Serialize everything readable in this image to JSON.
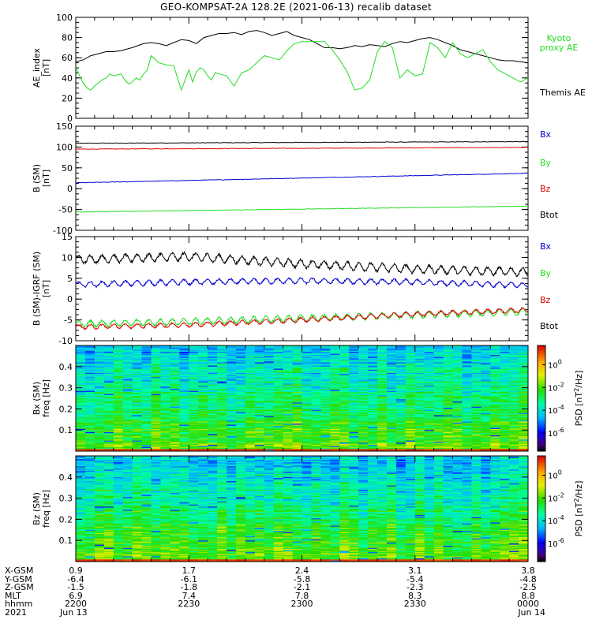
{
  "title": "GEO-KOMPSAT-2A 128.2E (2021-06-13) recalib dataset",
  "colors": {
    "black": "#000000",
    "green": "#22dd22",
    "red": "#dd0000",
    "blue": "#0000cc"
  },
  "chart_data": [
    {
      "type": "line",
      "id": "ae",
      "ylabel": "AE index [nT]",
      "ylabel_lines": [
        "AE_index",
        "[nT]"
      ],
      "ylim": [
        0,
        100
      ],
      "yticks": [
        0,
        20,
        40,
        60,
        80,
        100
      ],
      "xlim": [
        0,
        120
      ],
      "legend": [
        {
          "text": "Kyoto proxy AE",
          "lines": [
            "Kyoto",
            "proxy AE"
          ],
          "color": "#22dd22"
        },
        {
          "text": "Themis AE",
          "lines": [
            "Themis AE"
          ],
          "color": "#000000"
        }
      ],
      "series": [
        {
          "name": "Themis AE",
          "color": "#000000",
          "x": [
            0,
            2,
            4,
            6,
            8,
            10,
            12,
            15,
            18,
            20,
            22,
            24,
            26,
            28,
            30,
            32,
            34,
            36,
            38,
            40,
            42,
            44,
            46,
            48,
            50,
            52,
            54,
            56,
            58,
            60,
            62,
            64,
            66,
            68,
            70,
            72,
            74,
            76,
            78,
            80,
            82,
            84,
            86,
            88,
            90,
            92,
            94,
            96,
            98,
            100,
            102,
            104,
            106,
            108,
            110,
            112,
            114,
            116,
            118,
            120
          ],
          "y": [
            56,
            58,
            62,
            64,
            66,
            66,
            67,
            70,
            74,
            75,
            74,
            72,
            75,
            78,
            77,
            74,
            80,
            82,
            84,
            84,
            85,
            83,
            86,
            87,
            85,
            82,
            84,
            86,
            82,
            80,
            78,
            74,
            70,
            70,
            69,
            70,
            72,
            71,
            73,
            72,
            71,
            74,
            76,
            75,
            77,
            79,
            80,
            78,
            75,
            72,
            68,
            66,
            64,
            62,
            60,
            58,
            57,
            57,
            56,
            55
          ]
        },
        {
          "name": "Kyoto proxy AE",
          "color": "#22dd22",
          "x": [
            0,
            1,
            2,
            3,
            4,
            5,
            6,
            7,
            8,
            9,
            10,
            12,
            13,
            14,
            15,
            16,
            17,
            18,
            19,
            20,
            22,
            24,
            26,
            27,
            28,
            29,
            30,
            31,
            32,
            33,
            34,
            35,
            36,
            37,
            38,
            40,
            42,
            44,
            46,
            48,
            50,
            52,
            54,
            55,
            56,
            58,
            60,
            62,
            64,
            66,
            68,
            70,
            72,
            74,
            76,
            78,
            80,
            82,
            84,
            86,
            88,
            90,
            92,
            94,
            96,
            98,
            100,
            102,
            104,
            106,
            108,
            110,
            112,
            114,
            116,
            118,
            120
          ],
          "y": [
            52,
            42,
            35,
            30,
            28,
            32,
            35,
            38,
            40,
            44,
            42,
            44,
            38,
            34,
            36,
            40,
            38,
            44,
            48,
            62,
            55,
            53,
            52,
            40,
            28,
            38,
            48,
            36,
            46,
            50,
            48,
            42,
            38,
            45,
            44,
            42,
            32,
            45,
            48,
            55,
            62,
            60,
            58,
            62,
            67,
            74,
            76,
            76,
            76,
            76,
            68,
            58,
            46,
            28,
            30,
            38,
            66,
            76,
            70,
            40,
            48,
            42,
            44,
            75,
            70,
            60,
            75,
            64,
            60,
            64,
            68,
            56,
            48,
            44,
            40,
            36,
            40
          ]
        }
      ]
    },
    {
      "type": "line",
      "id": "b_sm",
      "ylabel": "B (SM) [nT]",
      "ylabel_lines": [
        "B (SM)",
        "[nT]"
      ],
      "ylim": [
        -100,
        150
      ],
      "yticks": [
        -100,
        -50,
        0,
        50,
        100,
        150
      ],
      "xlim": [
        0,
        120
      ],
      "legend": [
        {
          "text": "Bx",
          "color": "#0000cc"
        },
        {
          "text": "By",
          "color": "#22dd22"
        },
        {
          "text": "Bz",
          "color": "#dd0000"
        },
        {
          "text": "Btot",
          "color": "#000000"
        }
      ],
      "series": [
        {
          "name": "Btot",
          "color": "#000000",
          "x": [
            0,
            120
          ],
          "y": [
            109,
            113
          ]
        },
        {
          "name": "Bz",
          "color": "#dd0000",
          "x": [
            0,
            120
          ],
          "y": [
            95,
            99
          ]
        },
        {
          "name": "Bx",
          "color": "#0000cc",
          "x": [
            0,
            120
          ],
          "y": [
            14,
            37
          ]
        },
        {
          "name": "By",
          "color": "#22dd22",
          "x": [
            0,
            120
          ],
          "y": [
            -56,
            -42
          ]
        }
      ]
    },
    {
      "type": "line",
      "id": "b_minus_igrf",
      "ylabel": "B (SM)-IGRF (SM) [nT]",
      "ylabel_lines": [
        "B (SM)-IGRF (SM)",
        "[nT]"
      ],
      "ylim": [
        -10,
        15
      ],
      "yticks": [
        -10,
        -5,
        0,
        5,
        10,
        15
      ],
      "xlim": [
        0,
        120
      ],
      "legend": [
        {
          "text": "Bx",
          "color": "#0000cc"
        },
        {
          "text": "By",
          "color": "#22dd22"
        },
        {
          "text": "Bz",
          "color": "#dd0000"
        },
        {
          "text": "Btot",
          "color": "#000000"
        }
      ],
      "series": [
        {
          "name": "Btot",
          "color": "#000000",
          "x": [
            0,
            30,
            60,
            90,
            120
          ],
          "y": [
            9.5,
            10.2,
            8.5,
            7.2,
            6.5
          ],
          "oscillation_amplitude": 0.9
        },
        {
          "name": "Bx",
          "color": "#0000cc",
          "x": [
            0,
            30,
            60,
            90,
            120
          ],
          "y": [
            3.5,
            4.1,
            4.4,
            4.1,
            3.3
          ],
          "oscillation_amplitude": 0.6
        },
        {
          "name": "By",
          "color": "#22dd22",
          "x": [
            0,
            30,
            60,
            90,
            120
          ],
          "y": [
            -6.0,
            -5.4,
            -4.6,
            -3.8,
            -3.0
          ],
          "oscillation_amplitude": 0.7
        },
        {
          "name": "Bz",
          "color": "#dd0000",
          "x": [
            0,
            30,
            60,
            90,
            120
          ],
          "y": [
            -6.7,
            -6.2,
            -5.0,
            -3.6,
            -2.6
          ],
          "oscillation_amplitude": 0.5
        }
      ]
    },
    {
      "type": "heatmap",
      "id": "bx_spec",
      "ylabel": "Bx (SM) freq [Hz]",
      "ylabel_lines": [
        "Bx (SM)",
        "freq [Hz]"
      ],
      "ylim": [
        0,
        0.5
      ],
      "yticks": [
        0.1,
        0.2,
        0.3,
        0.4
      ],
      "ytick_labels": [
        "0.1",
        "0.2",
        "0.3",
        "0.4"
      ],
      "xlim": [
        0,
        120
      ],
      "colorbar": {
        "label": "PSD [nT^2/Hz]",
        "label_parts": [
          "PSD [nT",
          "2",
          "/Hz]"
        ],
        "ticks": [
          {
            "base": "10",
            "exp": "0"
          },
          {
            "base": "10",
            "exp": "-2"
          },
          {
            "base": "10",
            "exp": "-4"
          },
          {
            "base": "10",
            "exp": "-6"
          }
        ],
        "tick_values": [
          0,
          -2,
          -4,
          -6
        ]
      }
    },
    {
      "type": "heatmap",
      "id": "bz_spec",
      "ylabel": "Bz (SM) freq [Hz]",
      "ylabel_lines": [
        "Bz (SM)",
        "freq [Hz]"
      ],
      "ylim": [
        0,
        0.5
      ],
      "yticks": [
        0.1,
        0.2,
        0.3,
        0.4
      ],
      "ytick_labels": [
        "0.1",
        "0.2",
        "0.3",
        "0.4"
      ],
      "xlim": [
        0,
        120
      ],
      "colorbar": {
        "label": "PSD [nT^2/Hz]",
        "label_parts": [
          "PSD [nT",
          "2",
          "/Hz]"
        ],
        "ticks": [
          {
            "base": "10",
            "exp": "0"
          },
          {
            "base": "10",
            "exp": "-2"
          },
          {
            "base": "10",
            "exp": "-4"
          },
          {
            "base": "10",
            "exp": "-6"
          }
        ],
        "tick_values": [
          0,
          -2,
          -4,
          -6
        ]
      }
    }
  ],
  "ephemeris": {
    "row_labels": [
      "X-GSM",
      "Y-GSM",
      "Z-GSM",
      "MLT",
      "hhmm",
      "2021"
    ],
    "columns": [
      {
        "x": 0,
        "values": [
          "0.9",
          "-6.4",
          "-1.5",
          "6.9",
          "2200",
          "Jun 13"
        ]
      },
      {
        "x": 30,
        "values": [
          "1.7",
          "-6.1",
          "-1.8",
          "7.4",
          "2230",
          ""
        ]
      },
      {
        "x": 60,
        "values": [
          "2.4",
          "-5.8",
          "-2.1",
          "7.8",
          "2300",
          ""
        ]
      },
      {
        "x": 90,
        "values": [
          "3.1",
          "-5.4",
          "-2.3",
          "8.3",
          "2330",
          ""
        ]
      },
      {
        "x": 120,
        "values": [
          "3.8",
          "-4.8",
          "-2.5",
          "8.8",
          "0000",
          "Jun 14"
        ]
      }
    ]
  }
}
